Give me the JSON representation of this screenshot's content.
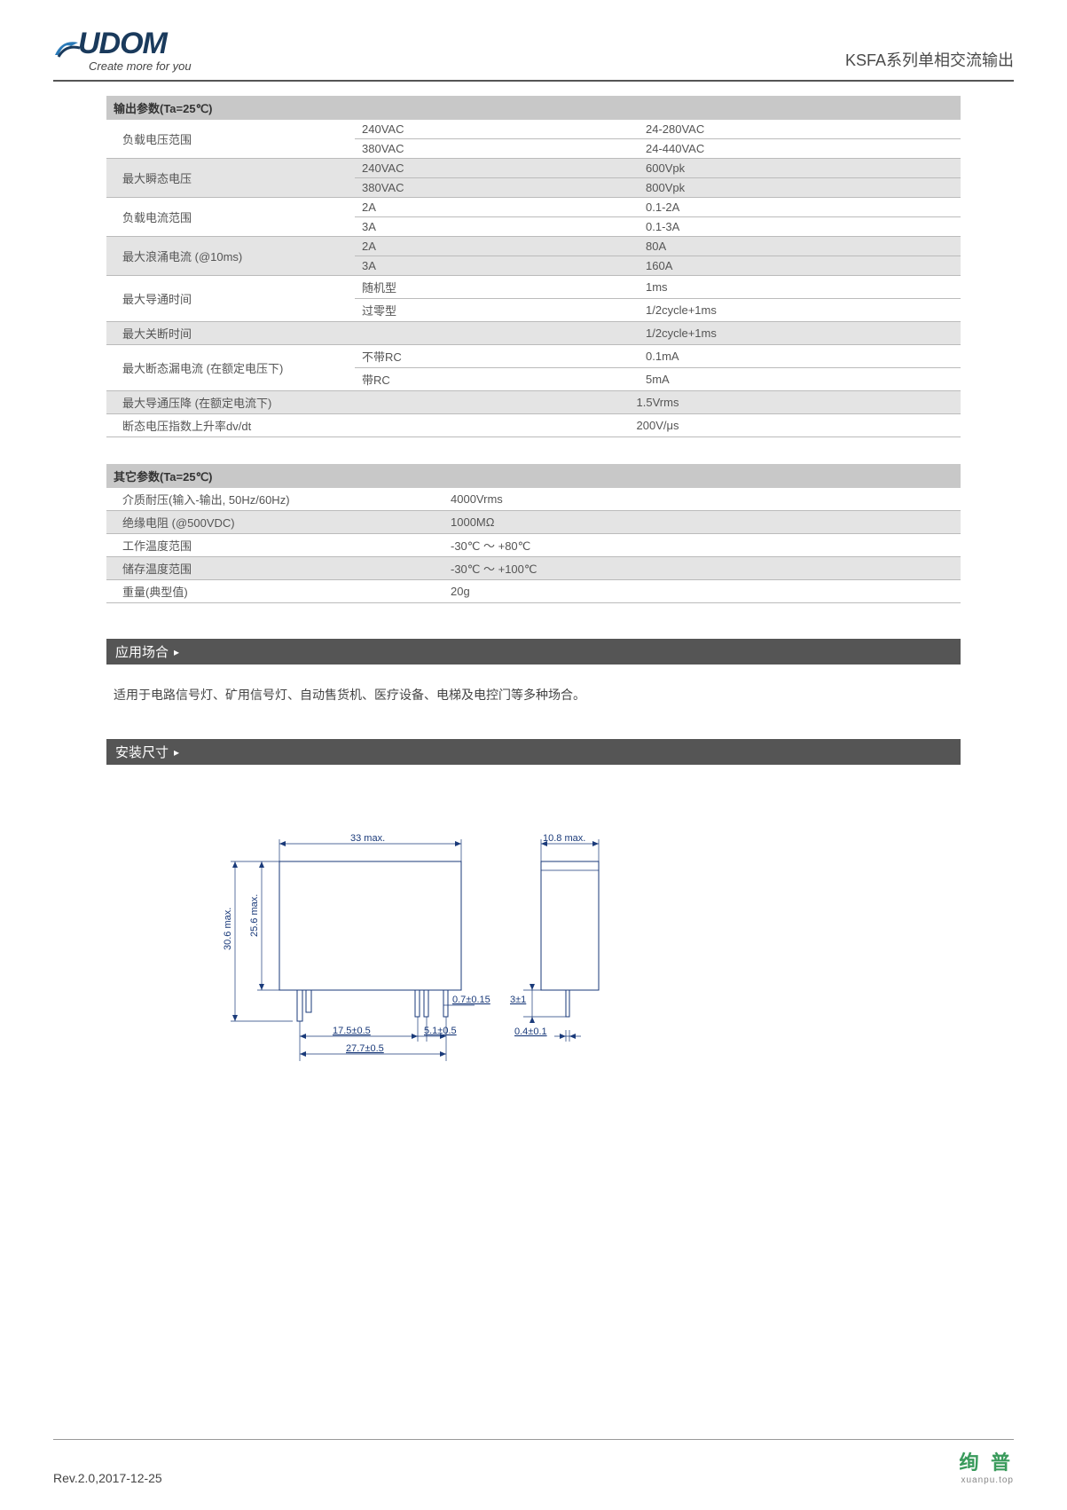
{
  "header": {
    "logo_main": "UDOM",
    "tagline": "Create more for you",
    "product_title": "KSFA系列单相交流输出"
  },
  "table_output": {
    "title": "输出参数(Ta=25℃)",
    "rows": [
      {
        "label": "负载电压范围",
        "sub": [
          {
            "m": "240VAC",
            "v": "24-280VAC"
          },
          {
            "m": "380VAC",
            "v": "24-440VAC"
          }
        ],
        "grey": false
      },
      {
        "label": "最大瞬态电压",
        "sub": [
          {
            "m": "240VAC",
            "v": "600Vpk"
          },
          {
            "m": "380VAC",
            "v": "800Vpk"
          }
        ],
        "grey": true
      },
      {
        "label": "负载电流范围",
        "sub": [
          {
            "m": "2A",
            "v": "0.1-2A"
          },
          {
            "m": "3A",
            "v": "0.1-3A"
          }
        ],
        "grey": false
      },
      {
        "label": "最大浪涌电流 (@10ms)",
        "sub": [
          {
            "m": "2A",
            "v": "80A"
          },
          {
            "m": "3A",
            "v": "160A"
          }
        ],
        "grey": true
      },
      {
        "label": "最大导通时间",
        "sub": [
          {
            "m": "随机型",
            "v": "1ms"
          },
          {
            "m": "过零型",
            "v": "1/2cycle+1ms"
          }
        ],
        "grey": false
      },
      {
        "label": "最大关断时间",
        "single_v": "1/2cycle+1ms",
        "grey": true
      },
      {
        "label": "最大断态漏电流 (在额定电压下)",
        "sub": [
          {
            "m": "不带RC",
            "v": "0.1mA"
          },
          {
            "m": "带RC",
            "v": "5mA"
          }
        ],
        "grey": false
      },
      {
        "label": "最大导通压降 (在额定电流下)",
        "center_v": "1.5Vrms",
        "grey": true
      },
      {
        "label": "断态电压指数上升率dv/dt",
        "center_v": "200V/μs",
        "grey": false
      }
    ]
  },
  "table_other": {
    "title": "其它参数(Ta=25℃)",
    "rows": [
      {
        "label": "介质耐压(输入-输出, 50Hz/60Hz)",
        "v": "4000Vrms",
        "grey": false
      },
      {
        "label": "绝缘电阻 (@500VDC)",
        "v": "1000MΩ",
        "grey": true
      },
      {
        "label": "工作温度范围",
        "v": "-30℃ ～ +80℃",
        "grey": false
      },
      {
        "label": "储存温度范围",
        "v": "-30℃ ～ +100℃",
        "grey": true
      },
      {
        "label": "重量(典型值)",
        "v": "20g",
        "grey": false
      }
    ]
  },
  "sections": {
    "application_title": "应用场合",
    "application_text": "适用于电路信号灯、矿用信号灯、自动售货机、医疗设备、电梯及电控门等多种场合。",
    "dimensions_title": "安装尺寸"
  },
  "drawing": {
    "w_top": "33 max.",
    "h_outer": "30.6 max.",
    "h_inner": "25.6 max.",
    "pin_w": "0.7±0.15",
    "d1": "17.5±0.5",
    "d2": "27.7±0.5",
    "d3": "5.1±0.5",
    "side_top": "10.8 max.",
    "side_pin_h": "3±1",
    "side_pin_w": "0.4±0.1"
  },
  "footer": {
    "rev": "Rev.2.0,2017-12-25",
    "brand": "绚 普",
    "url": "xuanpu.top"
  },
  "colors": {
    "header_grey": "#c8c8c8",
    "row_grey": "#e4e4e4",
    "section_bg": "#555555",
    "draw_blue": "#1a3a7a",
    "brand_green": "#3a9b5c"
  }
}
